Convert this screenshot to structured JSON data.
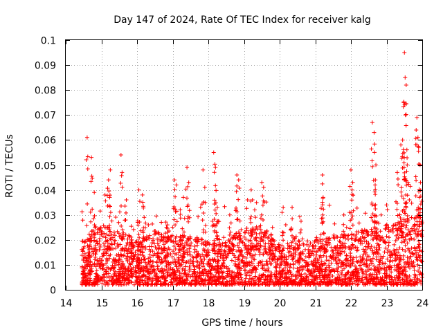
{
  "chart_data": {
    "type": "scatter",
    "title": "Day 147 of 2024, Rate Of TEC Index for receiver kalg",
    "xlabel": "GPS time / hours",
    "ylabel": "ROTI / TECUs",
    "xlim": [
      14,
      24
    ],
    "ylim": [
      0,
      0.1
    ],
    "xticks": [
      14,
      15,
      16,
      17,
      18,
      19,
      20,
      21,
      22,
      23,
      24
    ],
    "yticks": [
      0,
      0.01,
      0.02,
      0.03,
      0.04,
      0.05,
      0.06,
      0.07,
      0.08,
      0.09,
      0.1
    ],
    "xtick_labels": [
      "14",
      "15",
      "16",
      "17",
      "18",
      "19",
      "20",
      "21",
      "22",
      "23",
      "24"
    ],
    "ytick_labels": [
      "0",
      "0.01",
      "0.02",
      "0.03",
      "0.04",
      "0.05",
      "0.06",
      "0.07",
      "0.08",
      "0.09",
      "0.1"
    ],
    "grid": true,
    "marker": "+",
    "color": "#ff0000",
    "x_start": 14.45,
    "x_end": 24.0,
    "baseline_profile": [
      [
        14.45,
        0.009
      ],
      [
        15.0,
        0.012
      ],
      [
        15.5,
        0.011
      ],
      [
        16.0,
        0.009
      ],
      [
        16.5,
        0.011
      ],
      [
        17.0,
        0.01
      ],
      [
        17.5,
        0.01
      ],
      [
        18.0,
        0.009
      ],
      [
        18.5,
        0.01
      ],
      [
        19.0,
        0.011
      ],
      [
        19.5,
        0.012
      ],
      [
        20.0,
        0.008
      ],
      [
        20.5,
        0.009
      ],
      [
        21.0,
        0.009
      ],
      [
        21.5,
        0.01
      ],
      [
        22.0,
        0.011
      ],
      [
        22.5,
        0.011
      ],
      [
        23.0,
        0.012
      ],
      [
        23.5,
        0.013
      ],
      [
        24.0,
        0.015
      ]
    ],
    "spikes": [
      {
        "x": 14.6,
        "y": 0.061
      },
      {
        "x": 14.72,
        "y": 0.053
      },
      {
        "x": 14.8,
        "y": 0.039
      },
      {
        "x": 15.1,
        "y": 0.038
      },
      {
        "x": 15.2,
        "y": 0.044
      },
      {
        "x": 15.25,
        "y": 0.048
      },
      {
        "x": 15.55,
        "y": 0.054
      },
      {
        "x": 15.58,
        "y": 0.047
      },
      {
        "x": 15.7,
        "y": 0.036
      },
      {
        "x": 16.05,
        "y": 0.04
      },
      {
        "x": 16.15,
        "y": 0.038
      },
      {
        "x": 16.2,
        "y": 0.029
      },
      {
        "x": 16.85,
        "y": 0.026
      },
      {
        "x": 17.05,
        "y": 0.044
      },
      {
        "x": 17.1,
        "y": 0.042
      },
      {
        "x": 17.3,
        "y": 0.037
      },
      {
        "x": 17.4,
        "y": 0.049
      },
      {
        "x": 17.45,
        "y": 0.043
      },
      {
        "x": 17.85,
        "y": 0.048
      },
      {
        "x": 17.9,
        "y": 0.041
      },
      {
        "x": 18.15,
        "y": 0.055
      },
      {
        "x": 18.2,
        "y": 0.049
      },
      {
        "x": 18.25,
        "y": 0.033
      },
      {
        "x": 18.6,
        "y": 0.03
      },
      {
        "x": 18.8,
        "y": 0.046
      },
      {
        "x": 18.85,
        "y": 0.044
      },
      {
        "x": 19.1,
        "y": 0.036
      },
      {
        "x": 19.2,
        "y": 0.04
      },
      {
        "x": 19.3,
        "y": 0.032
      },
      {
        "x": 19.5,
        "y": 0.043
      },
      {
        "x": 19.55,
        "y": 0.041
      },
      {
        "x": 19.8,
        "y": 0.025
      },
      {
        "x": 20.1,
        "y": 0.033
      },
      {
        "x": 20.35,
        "y": 0.033
      },
      {
        "x": 20.6,
        "y": 0.024
      },
      {
        "x": 21.2,
        "y": 0.046
      },
      {
        "x": 21.22,
        "y": 0.037
      },
      {
        "x": 21.8,
        "y": 0.03
      },
      {
        "x": 22.0,
        "y": 0.048
      },
      {
        "x": 22.05,
        "y": 0.043
      },
      {
        "x": 22.6,
        "y": 0.067
      },
      {
        "x": 22.65,
        "y": 0.063
      },
      {
        "x": 22.7,
        "y": 0.05
      },
      {
        "x": 22.68,
        "y": 0.042
      },
      {
        "x": 23.0,
        "y": 0.034
      },
      {
        "x": 23.3,
        "y": 0.047
      },
      {
        "x": 23.4,
        "y": 0.058
      },
      {
        "x": 23.45,
        "y": 0.06
      },
      {
        "x": 23.5,
        "y": 0.095
      },
      {
        "x": 23.52,
        "y": 0.085
      },
      {
        "x": 23.55,
        "y": 0.082
      },
      {
        "x": 23.48,
        "y": 0.075
      },
      {
        "x": 23.53,
        "y": 0.07
      },
      {
        "x": 23.58,
        "y": 0.05
      },
      {
        "x": 23.6,
        "y": 0.043
      },
      {
        "x": 23.85,
        "y": 0.069
      },
      {
        "x": 23.83,
        "y": 0.064
      },
      {
        "x": 23.88,
        "y": 0.061
      },
      {
        "x": 23.9,
        "y": 0.057
      },
      {
        "x": 23.95,
        "y": 0.043
      },
      {
        "x": 23.92,
        "y": 0.037
      }
    ]
  }
}
